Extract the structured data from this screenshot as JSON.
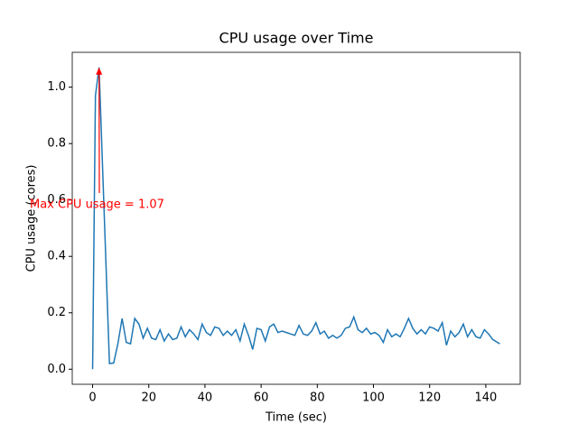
{
  "chart_data": {
    "type": "line",
    "title": "CPU usage over Time",
    "x_label": "Time (sec)",
    "y_label": "CPU usage (cores)",
    "x": [
      0,
      1,
      2.3,
      6,
      7.5,
      9,
      10.5,
      12,
      13.5,
      15,
      16.5,
      18,
      19.5,
      21,
      22.5,
      24,
      25.5,
      27,
      28.5,
      30,
      31.5,
      33,
      34.5,
      36,
      37.5,
      39,
      40.5,
      42,
      43.5,
      45,
      46.5,
      48,
      49.5,
      51,
      52.5,
      54,
      55.5,
      57,
      58.5,
      60,
      61.5,
      63,
      64.5,
      66,
      67.5,
      69,
      70.5,
      72,
      73.5,
      75,
      76.5,
      78,
      79.5,
      81,
      82.5,
      84,
      85.5,
      87,
      88.5,
      90,
      91.5,
      93,
      94.5,
      96,
      97.5,
      99,
      100.5,
      102,
      103.5,
      105,
      106.5,
      108,
      109.5,
      111,
      112.5,
      114,
      115.5,
      117,
      118.5,
      120,
      121.5,
      123,
      124.5,
      126,
      127.5,
      129,
      130.5,
      132,
      133.5,
      135,
      136.5,
      138,
      139.5,
      141,
      142.5,
      145
    ],
    "values": [
      0,
      0.97,
      1.07,
      0.02,
      0.022,
      0.09,
      0.18,
      0.095,
      0.09,
      0.18,
      0.16,
      0.11,
      0.145,
      0.11,
      0.105,
      0.14,
      0.1,
      0.125,
      0.105,
      0.11,
      0.15,
      0.115,
      0.14,
      0.125,
      0.105,
      0.16,
      0.13,
      0.12,
      0.15,
      0.145,
      0.12,
      0.135,
      0.12,
      0.14,
      0.1,
      0.16,
      0.12,
      0.07,
      0.145,
      0.14,
      0.1,
      0.15,
      0.16,
      0.13,
      0.135,
      0.13,
      0.125,
      0.12,
      0.155,
      0.125,
      0.12,
      0.135,
      0.165,
      0.125,
      0.135,
      0.11,
      0.12,
      0.11,
      0.12,
      0.145,
      0.15,
      0.185,
      0.14,
      0.13,
      0.145,
      0.125,
      0.13,
      0.12,
      0.095,
      0.14,
      0.115,
      0.125,
      0.115,
      0.145,
      0.18,
      0.145,
      0.125,
      0.14,
      0.125,
      0.15,
      0.145,
      0.135,
      0.165,
      0.085,
      0.135,
      0.115,
      0.13,
      0.16,
      0.115,
      0.14,
      0.115,
      0.11,
      0.14,
      0.125,
      0.105,
      0.09
    ],
    "color": "#1f77b4",
    "xlim": [
      -7.25,
      152.25
    ],
    "xticks": [
      0,
      20,
      40,
      60,
      80,
      100,
      120,
      140
    ],
    "ylim": [
      -0.0535,
      1.1235
    ],
    "yticks": [
      {
        "value": 0,
        "label": "0.0"
      },
      {
        "value": 0.2,
        "label": "0.2"
      },
      {
        "value": 0.4,
        "label": "0.4"
      },
      {
        "value": 0.6,
        "label": "0.6"
      },
      {
        "value": 0.8,
        "label": "0.8"
      },
      {
        "value": 1.0,
        "label": "1.0"
      }
    ],
    "annotation": {
      "text": "Max CPU usage = 1.07",
      "x": 2.3,
      "y": 1.07,
      "color": "red"
    }
  }
}
